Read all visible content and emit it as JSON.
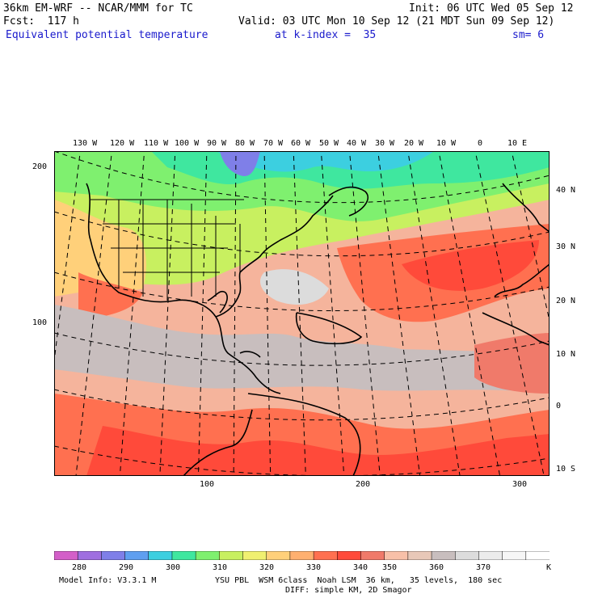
{
  "header": {
    "model": "36km EM-WRF -- NCAR/MMM for TC",
    "init": "Init: 06 UTC Wed 05 Sep 12",
    "fcst": "Fcst:  117 h",
    "valid": "Valid: 03 UTC Mon 10 Sep 12 (21 MDT Sun 09 Sep 12)",
    "field": "Equivalent potential temperature",
    "level": "at k-index =  35",
    "smooth": "sm= 6"
  },
  "map": {
    "lon_labels": [
      "130 W",
      "120 W",
      "110 W",
      "100 W",
      "90 W",
      "80 W",
      "70 W",
      "60 W",
      "50 W",
      "40 W",
      "30 W",
      "20 W",
      "10 W",
      "0",
      "10 E"
    ],
    "lat_labels": [
      "40 N",
      "30 N",
      "20 N",
      "10 N",
      "0",
      "10 S"
    ],
    "left_ticks": [
      "200",
      "100"
    ],
    "bottom_ticks": [
      "100",
      "200",
      "300"
    ]
  },
  "colorbar": {
    "labels": [
      "280",
      "290",
      "300",
      "310",
      "320",
      "330",
      "340",
      "350",
      "360",
      "370"
    ],
    "unit": "K",
    "colors": [
      "#d35fc8",
      "#9f6fe0",
      "#7f7fe8",
      "#5f9ff0",
      "#3ccfe0",
      "#3fe79f",
      "#7ff06f",
      "#c8f060",
      "#f0f070",
      "#ffd07a",
      "#ffb070",
      "#ff7050",
      "#ff4a3a",
      "#f07a6a",
      "#f8c0a8",
      "#e8c8b8",
      "#c8bebe",
      "#dcdcdc",
      "#ececec",
      "#f6f6f6",
      "#ffffff"
    ]
  },
  "footer": {
    "model_info": "Model Info: V3.3.1 M",
    "physics": "YSU PBL  WSM 6class  Noah LSM  36 km,   35 levels,  180 sec",
    "diffusion": "DIFF: simple KM, 2D Smagor"
  }
}
